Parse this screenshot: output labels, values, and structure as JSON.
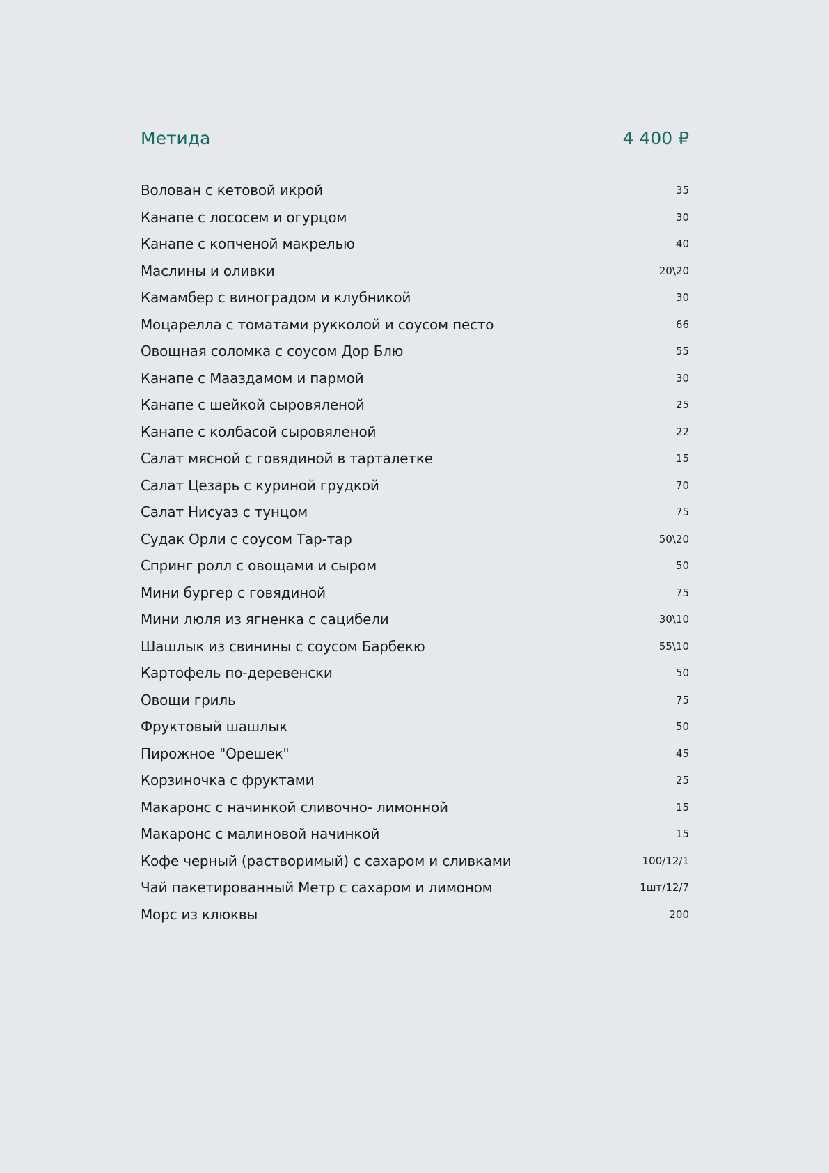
{
  "menu": {
    "title": "Метида",
    "price": "4 400 ₽",
    "accent_color": "#176b62",
    "items": [
      {
        "name": "Волован с кетовой икрой",
        "qty": "35"
      },
      {
        "name": "Канапе с лососем и огурцом",
        "qty": "30"
      },
      {
        "name": "Канапе с копченой макрелью",
        "qty": "40"
      },
      {
        "name": "Маслины и оливки",
        "qty": "20\\20"
      },
      {
        "name": "Камамбер с виноградом и клубникой",
        "qty": "30"
      },
      {
        "name": "Моцарелла с томатами рукколой и соусом песто",
        "qty": "66"
      },
      {
        "name": "Овощная соломка с соусом Дор Блю",
        "qty": "55"
      },
      {
        "name": "Канапе с Мааздамом и пармой",
        "qty": "30"
      },
      {
        "name": "Канапе с шейкой сыровяленой",
        "qty": "25"
      },
      {
        "name": "Канапе с колбасой сыровяленой",
        "qty": "22"
      },
      {
        "name": "Салат мясной с говядиной в тарталетке",
        "qty": "15"
      },
      {
        "name": "Салат Цезарь с куриной грудкой",
        "qty": "70"
      },
      {
        "name": "Салат Нисуаз с тунцом",
        "qty": "75"
      },
      {
        "name": "Судак Орли с соусом Тар-тар",
        "qty": "50\\20"
      },
      {
        "name": "Спринг ролл с овощами и сыром",
        "qty": "50"
      },
      {
        "name": "Мини бургер с говядиной",
        "qty": "75"
      },
      {
        "name": "Мини люля из ягненка с сацибели",
        "qty": "30\\10"
      },
      {
        "name": "Шашлык из свинины с соусом Барбекю",
        "qty": "55\\10"
      },
      {
        "name": "Картофель по-деревенски",
        "qty": "50"
      },
      {
        "name": "Овощи гриль",
        "qty": "75"
      },
      {
        "name": "Фруктовый шашлык",
        "qty": "50"
      },
      {
        "name": "Пирожное \"Орешек\"",
        "qty": "45"
      },
      {
        "name": "Корзиночка с фруктами",
        "qty": "25"
      },
      {
        "name": "Макаронс с начинкой сливочно- лимонной",
        "qty": "15"
      },
      {
        "name": "Макаронс с малиновой начинкой",
        "qty": "15"
      },
      {
        "name": "Кофе черный (растворимый) с сахаром и сливками",
        "qty": "100/12/1"
      },
      {
        "name": "Чай пакетированный Метр с сахаром и лимоном",
        "qty": "1шт/12/7"
      },
      {
        "name": "Морс из клюквы",
        "qty": "200"
      }
    ]
  }
}
